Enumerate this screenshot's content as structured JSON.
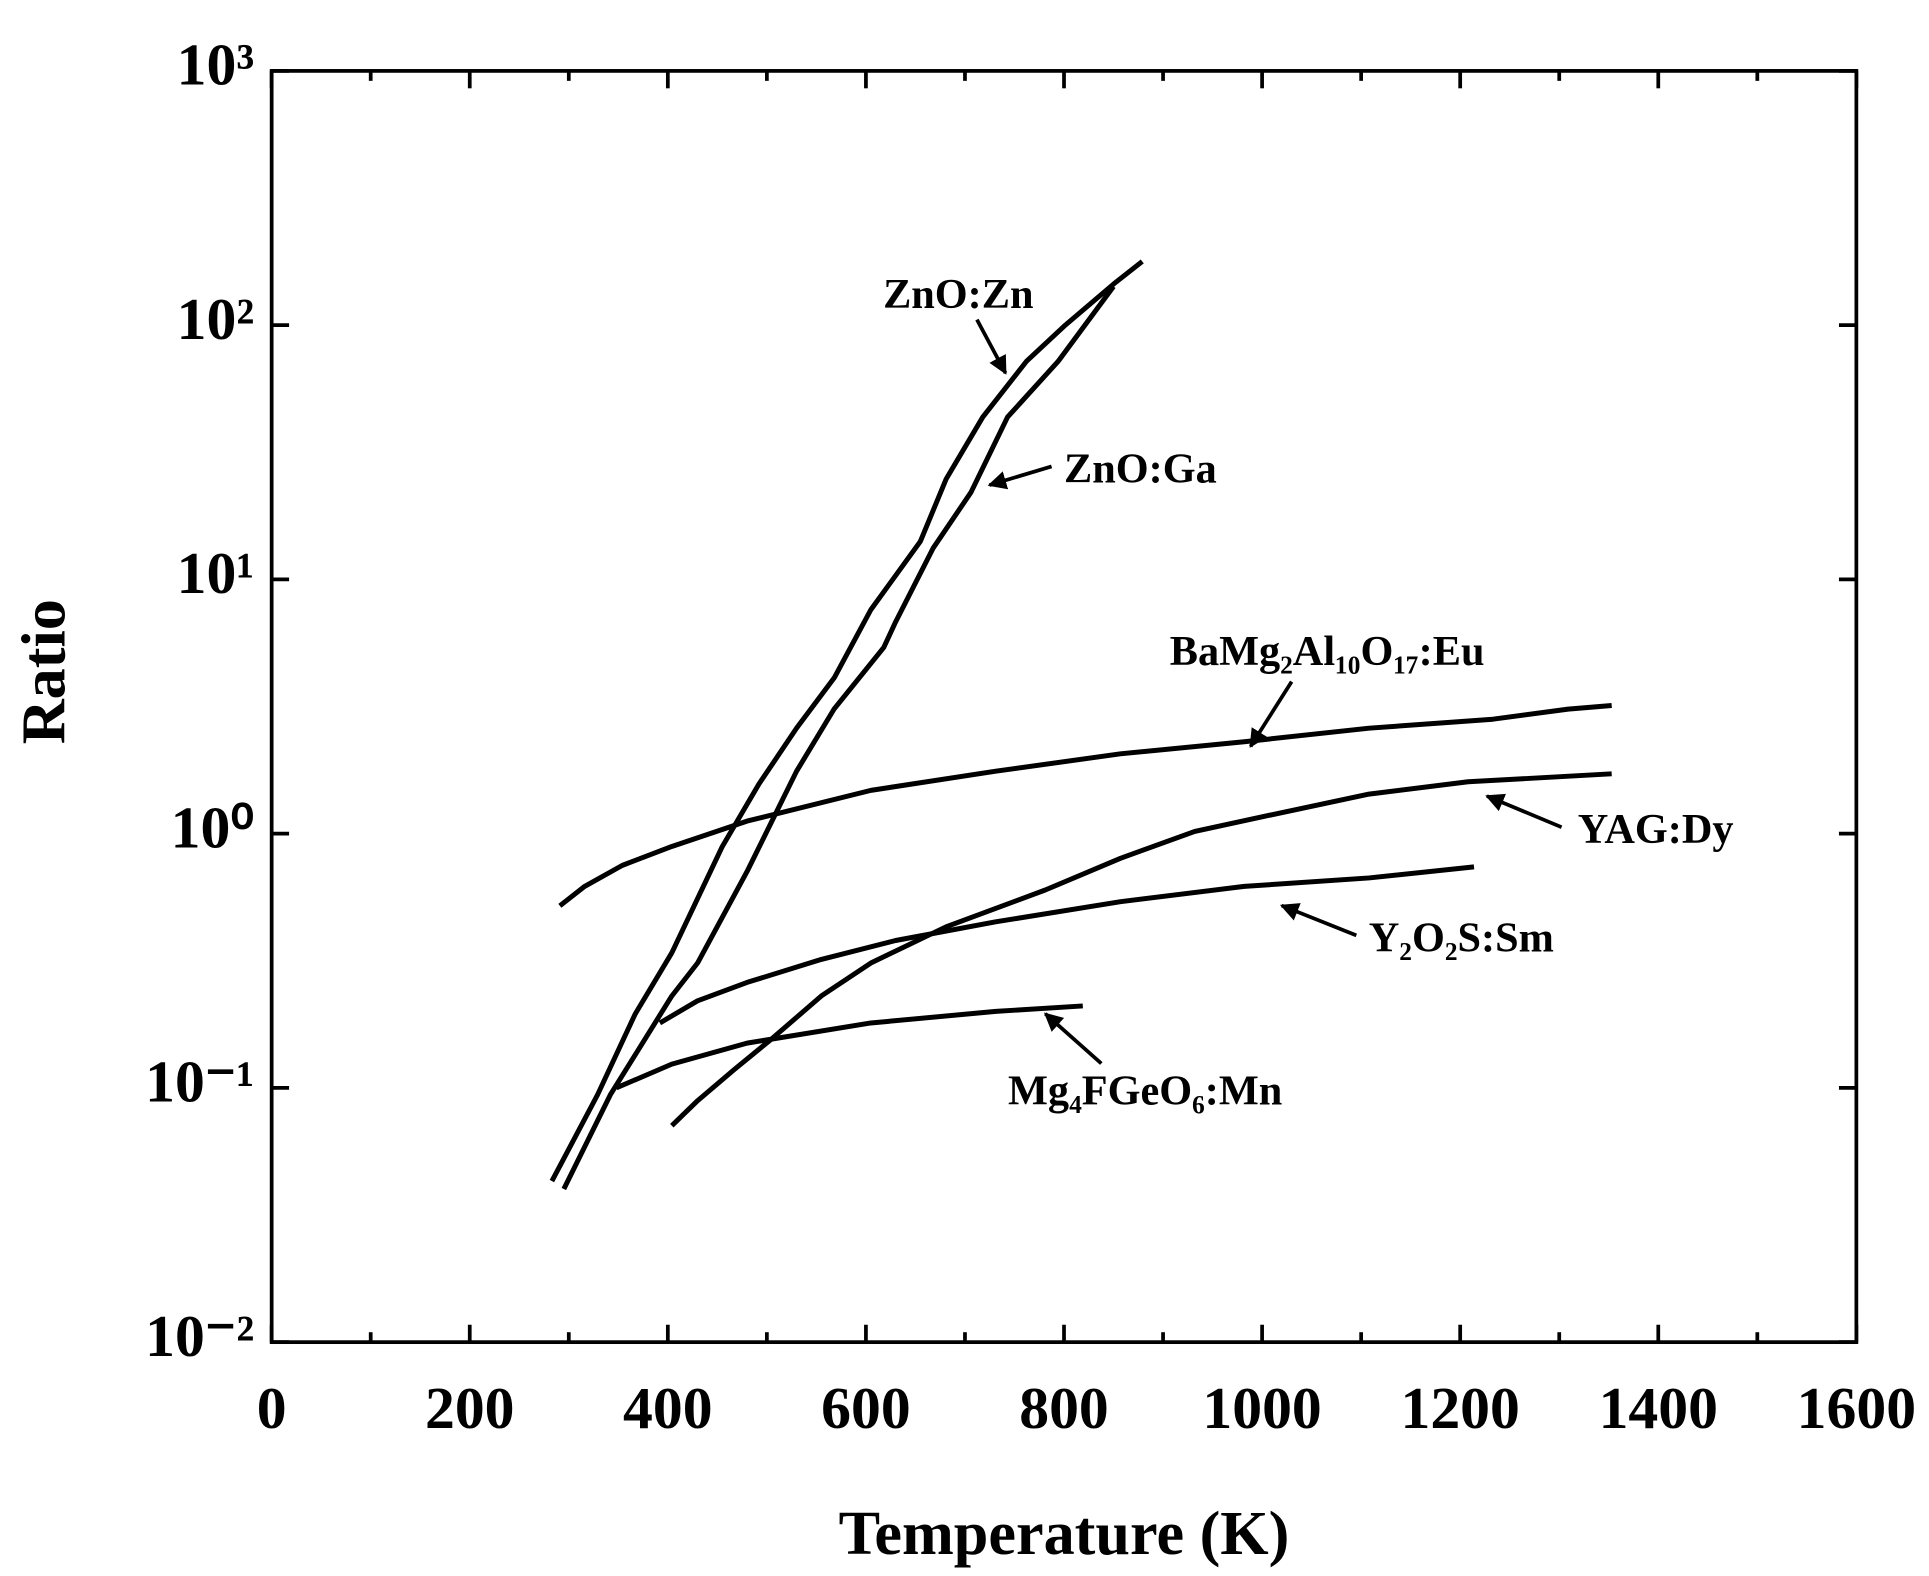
{
  "chart_data": {
    "type": "line",
    "x_label": "Temperature (K)",
    "y_label": "Ratio",
    "xlim": [
      0,
      1600
    ],
    "xticks": [
      0,
      200,
      400,
      600,
      800,
      1000,
      1200,
      1400,
      1600
    ],
    "ylim": [
      0.01,
      1000
    ],
    "log_y": true,
    "yticks": [
      {
        "value": 0.01,
        "label": "10⁻²"
      },
      {
        "value": 0.1,
        "label": "10⁻¹"
      },
      {
        "value": 1,
        "label": "10⁰"
      },
      {
        "value": 10,
        "label": "10¹"
      },
      {
        "value": 100,
        "label": "10²"
      },
      {
        "value": 1000,
        "label": "10³"
      }
    ],
    "series": [
      {
        "name": "ZnO:Zn",
        "color": "#000000",
        "x": [
          283,
          329,
          367,
          404,
          455,
          492,
          530,
          568,
          605,
          655,
          681,
          718,
          762,
          800,
          850,
          879
        ],
        "values": [
          0.043,
          0.094,
          0.195,
          0.34,
          0.89,
          1.57,
          2.6,
          4.1,
          7.6,
          14.1,
          24.8,
          43.5,
          72,
          99,
          145,
          178
        ]
      },
      {
        "name": "ZnO:Ga",
        "color": "#000000",
        "x": [
          295,
          342,
          404,
          430,
          480,
          530,
          568,
          618,
          630,
          668,
          706,
          743,
          794,
          850
        ],
        "values": [
          0.04,
          0.094,
          0.23,
          0.31,
          0.71,
          1.76,
          3.1,
          5.4,
          6.8,
          13.3,
          22,
          43.5,
          72,
          142
        ]
      },
      {
        "name": "BaMg₂Al₁₀O₁₇:Eu",
        "color": "#000000",
        "x": [
          291,
          316,
          354,
          404,
          480,
          605,
          731,
          857,
          982,
          1108,
          1233,
          1309,
          1353
        ],
        "values": [
          0.52,
          0.62,
          0.75,
          0.89,
          1.12,
          1.48,
          1.76,
          2.06,
          2.3,
          2.6,
          2.82,
          3.09,
          3.19
        ]
      },
      {
        "name": "YAG:Dy",
        "color": "#000000",
        "x": [
          404,
          430,
          467,
          505,
          555,
          605,
          681,
          781,
          857,
          932,
          1007,
          1108,
          1208,
          1353
        ],
        "values": [
          0.071,
          0.089,
          0.118,
          0.156,
          0.23,
          0.31,
          0.43,
          0.6,
          0.8,
          1.02,
          1.18,
          1.43,
          1.6,
          1.72
        ]
      },
      {
        "name": "Y₂O₂S:Sm",
        "color": "#000000",
        "x": [
          392,
          430,
          480,
          555,
          630,
          731,
          857,
          982,
          1108,
          1214
        ],
        "values": [
          0.18,
          0.22,
          0.26,
          0.32,
          0.38,
          0.45,
          0.54,
          0.62,
          0.67,
          0.74
        ]
      },
      {
        "name": "Mg₄FGeO₆:Mn",
        "color": "#000000",
        "x": [
          348,
          404,
          480,
          605,
          731,
          819
        ],
        "values": [
          0.1,
          0.124,
          0.15,
          0.18,
          0.2,
          0.21
        ]
      }
    ]
  }
}
